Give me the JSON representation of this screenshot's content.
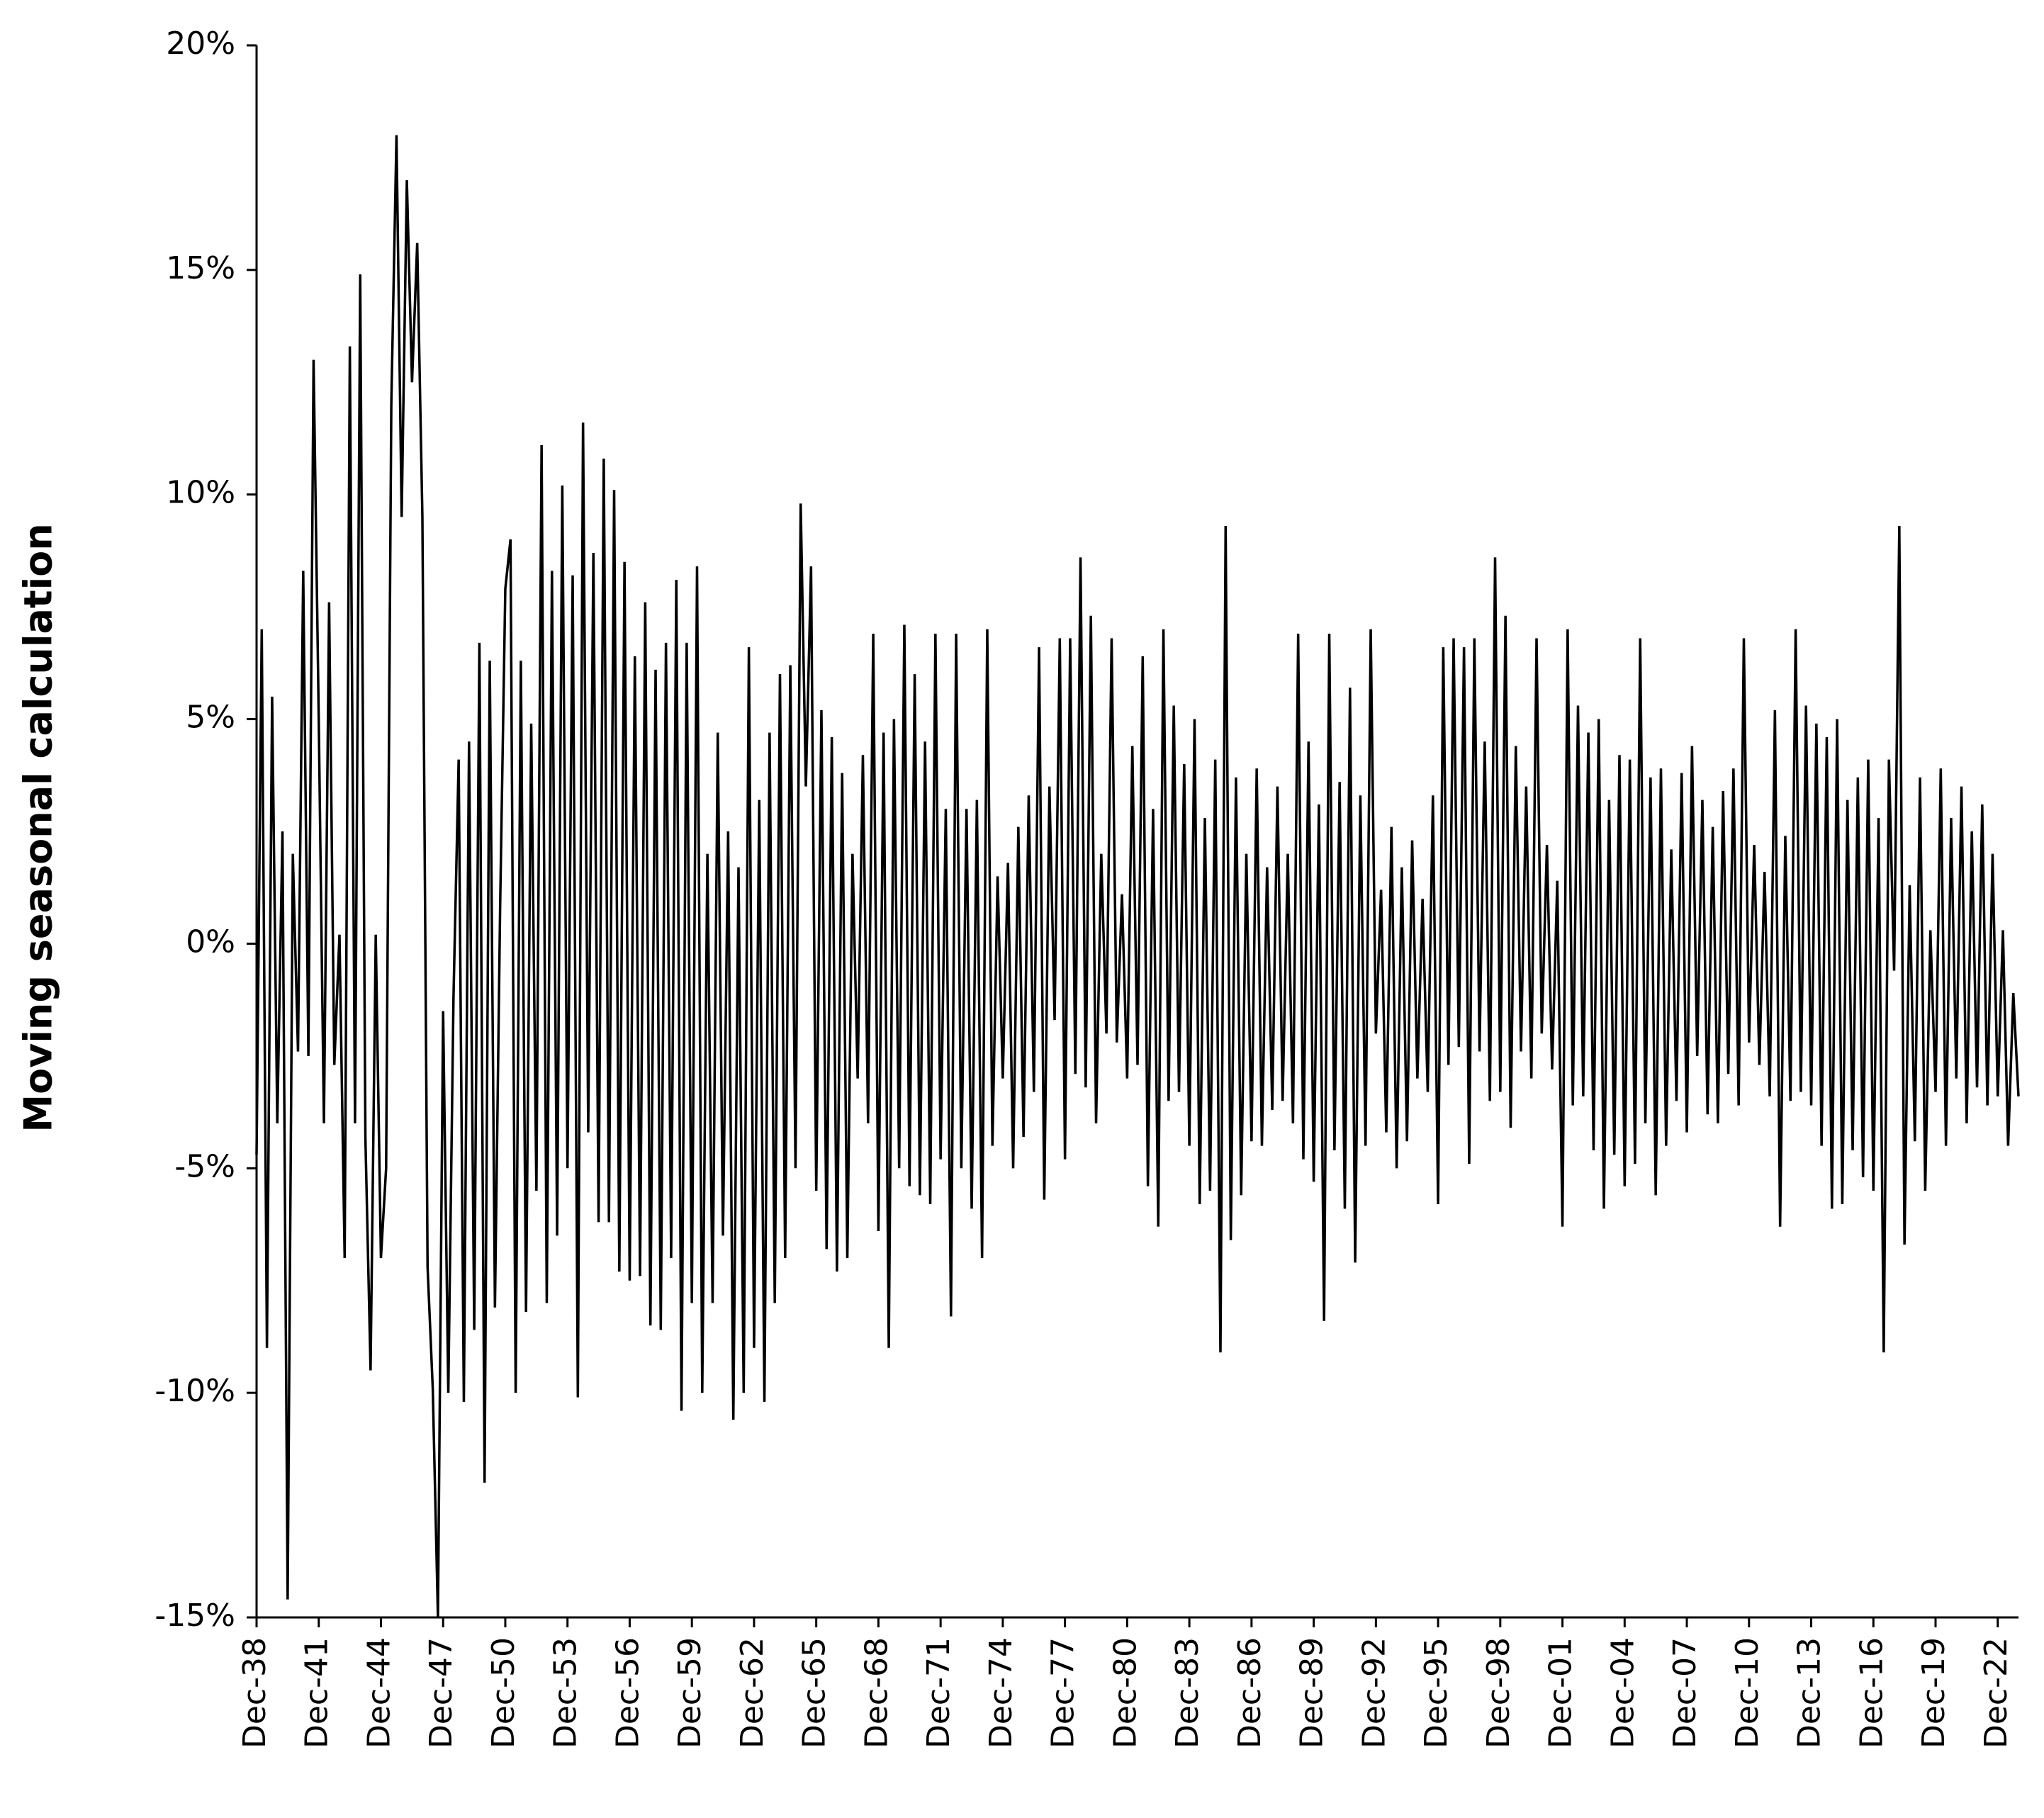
{
  "chart_data": {
    "type": "line",
    "y_label": "Moving seasonal calculation",
    "color": "#000000",
    "ylim": [
      -15,
      20
    ],
    "yticks": [
      {
        "value": -15,
        "label": "-15%"
      },
      {
        "value": -10,
        "label": "-10%"
      },
      {
        "value": -5,
        "label": "-5%"
      },
      {
        "value": 0,
        "label": "0%"
      },
      {
        "value": 5,
        "label": "5%"
      },
      {
        "value": 10,
        "label": "10%"
      },
      {
        "value": 15,
        "label": "15%"
      },
      {
        "value": 20,
        "label": "20%"
      }
    ],
    "categories": [
      "Dec-38",
      null,
      null,
      null,
      null,
      null,
      null,
      null,
      null,
      null,
      null,
      null,
      "Dec-41",
      null,
      null,
      null,
      null,
      null,
      null,
      null,
      null,
      null,
      null,
      null,
      "Dec-44",
      null,
      null,
      null,
      null,
      null,
      null,
      null,
      null,
      null,
      null,
      null,
      "Dec-47",
      null,
      null,
      null,
      null,
      null,
      null,
      null,
      null,
      null,
      null,
      null,
      "Dec-50",
      null,
      null,
      null,
      null,
      null,
      null,
      null,
      null,
      null,
      null,
      null,
      "Dec-53",
      null,
      null,
      null,
      null,
      null,
      null,
      null,
      null,
      null,
      null,
      null,
      "Dec-56",
      null,
      null,
      null,
      null,
      null,
      null,
      null,
      null,
      null,
      null,
      null,
      "Dec-59",
      null,
      null,
      null,
      null,
      null,
      null,
      null,
      null,
      null,
      null,
      null,
      "Dec-62",
      null,
      null,
      null,
      null,
      null,
      null,
      null,
      null,
      null,
      null,
      null,
      "Dec-65",
      null,
      null,
      null,
      null,
      null,
      null,
      null,
      null,
      null,
      null,
      null,
      "Dec-68",
      null,
      null,
      null,
      null,
      null,
      null,
      null,
      null,
      null,
      null,
      null,
      "Dec-71",
      null,
      null,
      null,
      null,
      null,
      null,
      null,
      null,
      null,
      null,
      null,
      "Dec-74",
      null,
      null,
      null,
      null,
      null,
      null,
      null,
      null,
      null,
      null,
      null,
      "Dec-77",
      null,
      null,
      null,
      null,
      null,
      null,
      null,
      null,
      null,
      null,
      null,
      "Dec-80",
      null,
      null,
      null,
      null,
      null,
      null,
      null,
      null,
      null,
      null,
      null,
      "Dec-83",
      null,
      null,
      null,
      null,
      null,
      null,
      null,
      null,
      null,
      null,
      null,
      "Dec-86",
      null,
      null,
      null,
      null,
      null,
      null,
      null,
      null,
      null,
      null,
      null,
      "Dec-89",
      null,
      null,
      null,
      null,
      null,
      null,
      null,
      null,
      null,
      null,
      null,
      "Dec-92",
      null,
      null,
      null,
      null,
      null,
      null,
      null,
      null,
      null,
      null,
      null,
      "Dec-95",
      null,
      null,
      null,
      null,
      null,
      null,
      null,
      null,
      null,
      null,
      null,
      "Dec-98",
      null,
      null,
      null,
      null,
      null,
      null,
      null,
      null,
      null,
      null,
      null,
      "Dec-01",
      null,
      null,
      null,
      null,
      null,
      null,
      null,
      null,
      null,
      null,
      null,
      "Dec-04",
      null,
      null,
      null,
      null,
      null,
      null,
      null,
      null,
      null,
      null,
      null,
      "Dec-07",
      null,
      null,
      null,
      null,
      null,
      null,
      null,
      null,
      null,
      null,
      null,
      "Dec-10",
      null,
      null,
      null,
      null,
      null,
      null,
      null,
      null,
      null,
      null,
      null,
      "Dec-13",
      null,
      null,
      null,
      null,
      null,
      null,
      null,
      null,
      null,
      null,
      null,
      "Dec-16",
      null,
      null,
      null,
      null,
      null,
      null,
      null,
      null,
      null,
      null,
      null,
      "Dec-19",
      null,
      null,
      null,
      null,
      null,
      null,
      null,
      null,
      null,
      null,
      null,
      "Dec-22",
      null,
      null,
      null,
      null
    ],
    "values": [
      -4.7,
      7,
      -9,
      5.5,
      -4,
      2.5,
      -14.6,
      2,
      -2.4,
      8.3,
      -2.5,
      13,
      5,
      -4,
      7.6,
      -2.7,
      0.2,
      -7,
      13.3,
      -4,
      14.9,
      -4.3,
      -9.5,
      0.2,
      -7,
      -5,
      12,
      18,
      9.5,
      17,
      12.5,
      15.6,
      9.5,
      -7.2,
      -9.9,
      -15,
      -1.5,
      -10,
      -1.2,
      4.1,
      -10.2,
      4.5,
      -8.6,
      6.7,
      -12,
      6.3,
      -8.1,
      0.8,
      7.9,
      9,
      -10,
      6.3,
      -8.2,
      4.9,
      -5.5,
      11.1,
      -8,
      8.3,
      -6.5,
      10.2,
      -5,
      8.2,
      -10.1,
      11.6,
      -4.2,
      8.7,
      -6.2,
      10.8,
      -6.2,
      10.1,
      -7.3,
      8.5,
      -7.5,
      6.4,
      -7.4,
      7.6,
      -8.5,
      6.1,
      -8.6,
      6.7,
      -7,
      8.1,
      -10.4,
      6.7,
      -8,
      8.4,
      -10,
      2,
      -8,
      4.7,
      -6.5,
      2.5,
      -10.6,
      1.7,
      -10,
      6.6,
      -9,
      3.2,
      -10.2,
      4.7,
      -8,
      6,
      -7,
      6.2,
      -5,
      9.8,
      3.5,
      8.4,
      -5.5,
      5.2,
      -6.8,
      4.6,
      -7.3,
      3.8,
      -7,
      2,
      -3,
      4.2,
      -4,
      6.9,
      -6.4,
      4.7,
      -9,
      5,
      -5,
      7.1,
      -5.4,
      6,
      -5.6,
      4.5,
      -5.8,
      6.9,
      -4.8,
      3,
      -8.3,
      6.9,
      -5,
      3,
      -5.9,
      3.2,
      -7,
      7,
      -4.5,
      1.5,
      -3,
      1.8,
      -5,
      2.6,
      -4.3,
      3.3,
      -3.3,
      6.6,
      -5.7,
      3.5,
      -1.7,
      6.8,
      -4.8,
      6.8,
      -2.9,
      8.6,
      -3.2,
      7.3,
      -4,
      2,
      -2,
      6.8,
      -2.2,
      1.1,
      -3,
      4.4,
      -2.7,
      6.4,
      -5.4,
      3,
      -6.3,
      7,
      -3.5,
      5.3,
      -3.3,
      4,
      -4.5,
      5,
      -5.8,
      2.8,
      -5.5,
      4.1,
      -9.1,
      9.3,
      -6.6,
      3.7,
      -5.6,
      2,
      -4.4,
      3.9,
      -4.5,
      1.7,
      -3.7,
      3.5,
      -3.5,
      2,
      -4,
      6.9,
      -4.8,
      4.5,
      -5.3,
      3.1,
      -8.4,
      6.9,
      -4.6,
      3.6,
      -5.9,
      5.7,
      -7.1,
      3.3,
      -4.5,
      7,
      -2,
      1.2,
      -4.2,
      2.6,
      -5,
      1.7,
      -4.4,
      2.3,
      -3,
      1,
      -3.3,
      3.3,
      -5.8,
      6.6,
      -2.7,
      6.8,
      -2.3,
      6.6,
      -4.9,
      6.8,
      -2.4,
      4.5,
      -3.5,
      8.6,
      -3.3,
      7.3,
      -4.1,
      4.4,
      -2.4,
      3.5,
      -3,
      6.8,
      -2,
      2.2,
      -2.8,
      1.4,
      -6.3,
      7,
      -3.6,
      5.3,
      -3.4,
      4.7,
      -4.6,
      5,
      -5.9,
      3.2,
      -4.7,
      4.2,
      -5.4,
      4.1,
      -4.9,
      6.8,
      -4,
      3.7,
      -5.6,
      3.9,
      -4.5,
      2.1,
      -3.5,
      3.8,
      -4.2,
      4.4,
      -2.5,
      3.2,
      -3.8,
      2.6,
      -4,
      3.4,
      -2.9,
      3.9,
      -3.6,
      6.8,
      -2.2,
      2.2,
      -2.7,
      1.6,
      -3.4,
      5.2,
      -6.3,
      2.4,
      -3.5,
      7,
      -3.3,
      5.3,
      -3.6,
      4.9,
      -4.5,
      4.6,
      -5.9,
      5,
      -5.8,
      3.2,
      -4.6,
      3.7,
      -5.2,
      4.1,
      -5.5,
      2.8,
      -9.1,
      4.1,
      -0.6,
      9.3,
      -6.7,
      1.3,
      -4.4,
      3.7,
      -5.5,
      0.3,
      -3.3,
      3.9,
      -4.5,
      2.8,
      -3,
      3.5,
      -4,
      2.5,
      -3.2,
      3.1,
      -3.6,
      2,
      -3.4,
      0.3,
      -4.5,
      -1.1,
      -3.4
    ]
  }
}
